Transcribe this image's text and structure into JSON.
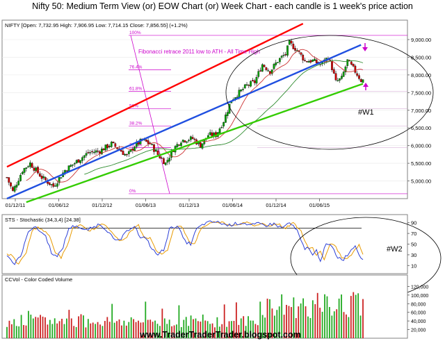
{
  "header": {
    "title": "Nifty 50: Medium Term View (or) EOW Chart (or) Week Chart - each candle is 1 week's price action"
  },
  "colors": {
    "up_candle": "#00a000",
    "down_candle": "#cc0000",
    "channel_top": "#ff0000",
    "channel_mid": "#1f4fe0",
    "channel_bottom": "#33cc00",
    "fib": "#cc00cc",
    "stoch_k": "#2c3fd6",
    "stoch_d": "#e89a00",
    "volume_up": "#22aa22",
    "volume_down": "#cc2222"
  },
  "price_panel": {
    "info": "NIFTY [Open: 7,732.95  High: 7,906.95  Low: 7,714.15  Close: 7,856.55] (+1.2%)",
    "annotation": "Fibonacci retrace 2011 low to ATH - All Time High",
    "wave_label": "#W1",
    "fib_labels": [
      "100%",
      "76.4%",
      "61.8%",
      "50%",
      "38.2%",
      "23.6%",
      "0%"
    ],
    "fib_values": [
      9119,
      8142,
      7534,
      7043,
      6552,
      5944,
      4639
    ]
  },
  "stoch_panel": {
    "label": "STS - Stochastic (34,3,4) [24.38]",
    "wave_label": "#W2",
    "ticks": [
      "90",
      "70",
      "50",
      "30",
      "10"
    ],
    "tick_values": [
      90,
      70,
      50,
      30,
      10
    ],
    "reference_level": 80
  },
  "volume_panel": {
    "label": "CCVol - Color Coded Volume",
    "ticks": [
      "120,000",
      "100,000",
      "80,000",
      "60,000",
      "40,000",
      "20,000"
    ],
    "tick_values": [
      120000,
      100000,
      80000,
      60000,
      40000,
      20000
    ]
  },
  "footer": {
    "watermark": "www.TraderTraderTrader.blogspot.com"
  },
  "chart_data": {
    "type": "candlestick",
    "title": "Nifty 50: Medium Term View (or) EOW Chart (or) Week Chart - each candle is 1 week's price action",
    "x_ticks": [
      "01/12/11",
      "01/06/12",
      "01/12/12",
      "01/06/13",
      "01/12/13",
      "01/06/14",
      "01/12/14",
      "01/06/15"
    ],
    "y_ticks": [
      "9,000.00",
      "8,500.00",
      "8,000.00",
      "7,500.00",
      "7,000.00",
      "6,500.00",
      "6,000.00",
      "5,500.00",
      "5,000.00"
    ],
    "y_tick_values": [
      9000,
      8500,
      8000,
      7500,
      7000,
      6500,
      6000,
      5500,
      5000
    ],
    "ylim": [
      4500,
      9550
    ],
    "price_path": [
      [
        0,
        5100
      ],
      [
        3,
        4700
      ],
      [
        8,
        5300
      ],
      [
        12,
        5500
      ],
      [
        18,
        5100
      ],
      [
        24,
        4850
      ],
      [
        30,
        5300
      ],
      [
        36,
        5550
      ],
      [
        42,
        5800
      ],
      [
        48,
        5850
      ],
      [
        54,
        6050
      ],
      [
        58,
        5900
      ],
      [
        62,
        5700
      ],
      [
        66,
        6000
      ],
      [
        70,
        6150
      ],
      [
        74,
        6050
      ],
      [
        78,
        5750
      ],
      [
        82,
        5500
      ],
      [
        86,
        5900
      ],
      [
        90,
        6150
      ],
      [
        96,
        6200
      ],
      [
        100,
        6000
      ],
      [
        104,
        6300
      ],
      [
        108,
        6300
      ],
      [
        112,
        6700
      ],
      [
        116,
        7300
      ],
      [
        120,
        7500
      ],
      [
        124,
        7700
      ],
      [
        128,
        7800
      ],
      [
        132,
        8300
      ],
      [
        136,
        8100
      ],
      [
        140,
        8400
      ],
      [
        144,
        8600
      ],
      [
        146,
        8900
      ],
      [
        150,
        8700
      ],
      [
        154,
        8400
      ],
      [
        158,
        8400
      ],
      [
        162,
        8300
      ],
      [
        166,
        8500
      ],
      [
        168,
        8200
      ],
      [
        170,
        7800
      ],
      [
        173,
        7900
      ],
      [
        176,
        8400
      ],
      [
        180,
        8100
      ],
      [
        183,
        7850
      ]
    ],
    "channel_top": {
      "from": [
        0,
        5400
      ],
      "to": [
        153,
        9450
      ]
    },
    "channel_mid": {
      "from": [
        0,
        4500
      ],
      "to": [
        183,
        8850
      ]
    },
    "channel_bottom": {
      "from": [
        10,
        4400
      ],
      "to": [
        184,
        7750
      ]
    },
    "stochastic_path": [
      [
        0,
        30
      ],
      [
        4,
        12
      ],
      [
        8,
        35
      ],
      [
        11,
        75
      ],
      [
        14,
        82
      ],
      [
        17,
        75
      ],
      [
        20,
        65
      ],
      [
        23,
        35
      ],
      [
        26,
        25
      ],
      [
        29,
        45
      ],
      [
        32,
        80
      ],
      [
        36,
        85
      ],
      [
        40,
        75
      ],
      [
        44,
        80
      ],
      [
        48,
        88
      ],
      [
        52,
        75
      ],
      [
        56,
        55
      ],
      [
        59,
        60
      ],
      [
        63,
        78
      ],
      [
        66,
        85
      ],
      [
        69,
        60
      ],
      [
        72,
        62
      ],
      [
        75,
        40
      ],
      [
        78,
        30
      ],
      [
        81,
        40
      ],
      [
        84,
        78
      ],
      [
        88,
        85
      ],
      [
        92,
        55
      ],
      [
        95,
        50
      ],
      [
        98,
        78
      ],
      [
        102,
        88
      ],
      [
        106,
        92
      ],
      [
        110,
        90
      ],
      [
        114,
        85
      ],
      [
        118,
        88
      ],
      [
        122,
        90
      ],
      [
        126,
        85
      ],
      [
        130,
        88
      ],
      [
        134,
        85
      ],
      [
        138,
        88
      ],
      [
        142,
        80
      ],
      [
        146,
        90
      ],
      [
        150,
        75
      ],
      [
        152,
        55
      ],
      [
        154,
        40
      ],
      [
        156,
        45
      ],
      [
        158,
        28
      ],
      [
        160,
        38
      ],
      [
        162,
        20
      ],
      [
        165,
        50
      ],
      [
        168,
        45
      ],
      [
        171,
        25
      ],
      [
        174,
        22
      ],
      [
        177,
        35
      ],
      [
        180,
        48
      ],
      [
        183,
        24
      ]
    ],
    "volume_bars": 150
  }
}
